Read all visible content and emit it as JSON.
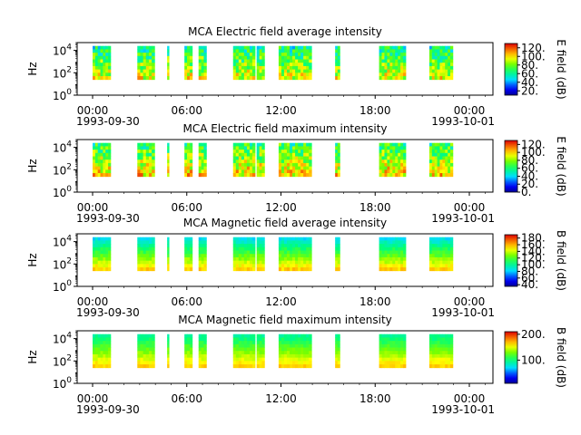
{
  "chart_data": [
    {
      "type": "heatmap",
      "title": "MCA  Electric field average intensity",
      "ylabel": "Hz",
      "y_scale": "log",
      "ylim": [
        1,
        50000
      ],
      "y_ticks": [
        {
          "value": 1,
          "base": "10",
          "exp": "0"
        },
        {
          "value": 100,
          "base": "10",
          "exp": "2"
        },
        {
          "value": 10000,
          "base": "10",
          "exp": "4"
        }
      ],
      "x_ticks": [
        "00:00",
        "06:00",
        "12:00",
        "18:00",
        "00:00"
      ],
      "x_dates": [
        "1993-09-30",
        "1993-10-01"
      ],
      "colorbar_label": "E field (dB)",
      "colorbar_ticks": [
        "120.",
        "100.",
        "80.",
        "60.",
        "40.",
        "20."
      ],
      "colorbar_range": [
        10,
        130
      ],
      "data_range_db": [
        20,
        120
      ],
      "data_bands": [
        [
          0.0,
          1.15
        ],
        [
          2.85,
          3.95
        ],
        [
          4.75,
          4.85
        ],
        [
          5.85,
          6.35
        ],
        [
          6.75,
          7.25
        ],
        [
          8.95,
          10.35
        ],
        [
          10.45,
          10.95
        ],
        [
          11.85,
          13.95
        ],
        [
          15.45,
          15.75
        ],
        [
          18.25,
          19.95
        ],
        [
          21.45,
          22.95
        ]
      ]
    },
    {
      "type": "heatmap",
      "title": "MCA  Electric field maximum intensity",
      "ylabel": "Hz",
      "y_scale": "log",
      "ylim": [
        1,
        50000
      ],
      "y_ticks": [
        {
          "value": 1,
          "base": "10",
          "exp": "0"
        },
        {
          "value": 100,
          "base": "10",
          "exp": "2"
        },
        {
          "value": 10000,
          "base": "10",
          "exp": "4"
        }
      ],
      "x_ticks": [
        "00:00",
        "06:00",
        "12:00",
        "18:00",
        "00:00"
      ],
      "x_dates": [
        "1993-09-30",
        "1993-10-01"
      ],
      "colorbar_label": "E field (dB)",
      "colorbar_ticks": [
        "120.",
        "100.",
        "80.",
        "60.",
        "40.",
        "20.",
        "0."
      ],
      "colorbar_range": [
        0,
        130
      ],
      "data_range_db": [
        40,
        120
      ],
      "data_bands": [
        [
          0.0,
          1.15
        ],
        [
          2.85,
          3.95
        ],
        [
          4.75,
          4.85
        ],
        [
          5.85,
          6.35
        ],
        [
          6.75,
          7.25
        ],
        [
          8.95,
          10.35
        ],
        [
          10.45,
          10.95
        ],
        [
          11.85,
          13.95
        ],
        [
          15.45,
          15.75
        ],
        [
          18.25,
          19.95
        ],
        [
          21.45,
          22.95
        ]
      ]
    },
    {
      "type": "heatmap",
      "title": "MCA  Magnetic field average intensity",
      "ylabel": "Hz",
      "y_scale": "log",
      "ylim": [
        1,
        50000
      ],
      "y_ticks": [
        {
          "value": 1,
          "base": "10",
          "exp": "0"
        },
        {
          "value": 100,
          "base": "10",
          "exp": "2"
        },
        {
          "value": 10000,
          "base": "10",
          "exp": "4"
        }
      ],
      "x_ticks": [
        "00:00",
        "06:00",
        "12:00",
        "18:00",
        "00:00"
      ],
      "x_dates": [
        "1993-09-30",
        "1993-10-01"
      ],
      "colorbar_label": "B field (dB)",
      "colorbar_ticks": [
        "180.",
        "160.",
        "140.",
        "120.",
        "100.",
        "80.",
        "60.",
        "40."
      ],
      "colorbar_range": [
        35,
        190
      ],
      "data_range_db": [
        80,
        160
      ],
      "data_bands": [
        [
          0.0,
          1.15
        ],
        [
          2.85,
          3.95
        ],
        [
          4.75,
          4.85
        ],
        [
          5.85,
          6.35
        ],
        [
          6.75,
          7.25
        ],
        [
          8.95,
          10.35
        ],
        [
          10.45,
          10.95
        ],
        [
          11.85,
          13.95
        ],
        [
          15.45,
          15.75
        ],
        [
          18.25,
          19.95
        ],
        [
          21.45,
          22.95
        ]
      ]
    },
    {
      "type": "heatmap",
      "title": "MCA  Magnetic field maximum intensity",
      "ylabel": "Hz",
      "y_scale": "log",
      "ylim": [
        1,
        50000
      ],
      "y_ticks": [
        {
          "value": 1,
          "base": "10",
          "exp": "0"
        },
        {
          "value": 100,
          "base": "10",
          "exp": "2"
        },
        {
          "value": 10000,
          "base": "10",
          "exp": "4"
        }
      ],
      "x_ticks": [
        "00:00",
        "06:00",
        "12:00",
        "18:00",
        "00:00"
      ],
      "x_dates": [
        "1993-09-30",
        "1993-10-01"
      ],
      "colorbar_label": "B field (dB)",
      "colorbar_ticks": [
        "200.",
        "100."
      ],
      "colorbar_range": [
        10,
        210
      ],
      "data_range_db": [
        90,
        170
      ],
      "data_bands": [
        [
          0.0,
          1.15
        ],
        [
          2.85,
          3.95
        ],
        [
          4.75,
          4.85
        ],
        [
          5.85,
          6.35
        ],
        [
          6.75,
          7.25
        ],
        [
          8.95,
          10.35
        ],
        [
          10.45,
          10.95
        ],
        [
          11.85,
          13.95
        ],
        [
          15.45,
          15.75
        ],
        [
          18.25,
          19.95
        ],
        [
          21.45,
          22.95
        ]
      ]
    }
  ]
}
